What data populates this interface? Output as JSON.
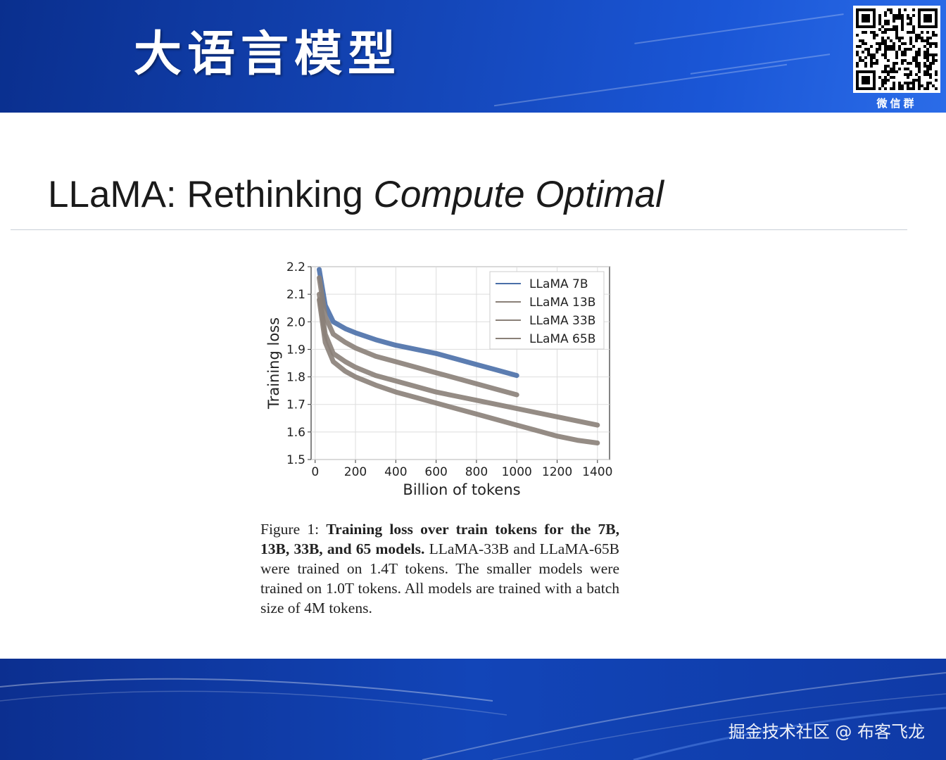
{
  "banner": {
    "title": "大语言模型",
    "qr_label": "微信群"
  },
  "slide": {
    "title_plain": "LLaMA: Rethinking ",
    "title_italic": "Compute Optimal"
  },
  "chart_data": {
    "type": "line",
    "title": "",
    "xlabel": "Billion of tokens",
    "ylabel": "Training loss",
    "xlim": [
      -20,
      1460
    ],
    "ylim": [
      1.5,
      2.2
    ],
    "xticks": [
      "0",
      "200",
      "400",
      "600",
      "800",
      "1000",
      "1200",
      "1400"
    ],
    "yticks": [
      "1.5",
      "1.6",
      "1.7",
      "1.8",
      "1.9",
      "2.0",
      "2.1",
      "2.2"
    ],
    "grid": true,
    "legend_position": "top-right",
    "series": [
      {
        "name": "LLaMA 7B",
        "color": "#4a6fa8",
        "x": [
          20,
          50,
          90,
          150,
          200,
          300,
          400,
          500,
          600,
          700,
          800,
          900,
          1000
        ],
        "y": [
          2.19,
          2.06,
          2.0,
          1.975,
          1.96,
          1.935,
          1.915,
          1.9,
          1.885,
          1.865,
          1.845,
          1.825,
          1.805
        ]
      },
      {
        "name": "LLaMA 13B",
        "color": "#8a8078",
        "x": [
          20,
          50,
          90,
          150,
          200,
          300,
          400,
          500,
          600,
          700,
          800,
          900,
          1000
        ],
        "y": [
          2.16,
          2.02,
          1.955,
          1.925,
          1.905,
          1.875,
          1.855,
          1.835,
          1.815,
          1.795,
          1.775,
          1.755,
          1.735
        ]
      },
      {
        "name": "LLaMA 33B",
        "color": "#8a8078",
        "x": [
          20,
          50,
          90,
          150,
          200,
          300,
          400,
          500,
          600,
          700,
          800,
          900,
          1000,
          1100,
          1200,
          1300,
          1400
        ],
        "y": [
          2.1,
          1.955,
          1.885,
          1.855,
          1.835,
          1.805,
          1.785,
          1.765,
          1.745,
          1.73,
          1.715,
          1.7,
          1.685,
          1.67,
          1.655,
          1.64,
          1.625
        ]
      },
      {
        "name": "LLaMA 65B",
        "color": "#8a8078",
        "x": [
          20,
          50,
          90,
          150,
          200,
          300,
          400,
          500,
          600,
          700,
          800,
          900,
          1000,
          1100,
          1200,
          1300,
          1400
        ],
        "y": [
          2.08,
          1.925,
          1.855,
          1.82,
          1.8,
          1.77,
          1.745,
          1.725,
          1.705,
          1.685,
          1.665,
          1.645,
          1.625,
          1.605,
          1.585,
          1.57,
          1.56
        ]
      }
    ]
  },
  "caption": {
    "label": "Figure 1: ",
    "bold": "Training loss over train tokens for the 7B, 13B, 33B, and 65 models.",
    "text": " LLaMA-33B and LLaMA-65B were trained on 1.4T tokens. The smaller models were trained on 1.0T tokens.  All models are trained with a batch size of 4M tokens."
  },
  "watermark": "掘金技术社区 @ 布客飞龙"
}
